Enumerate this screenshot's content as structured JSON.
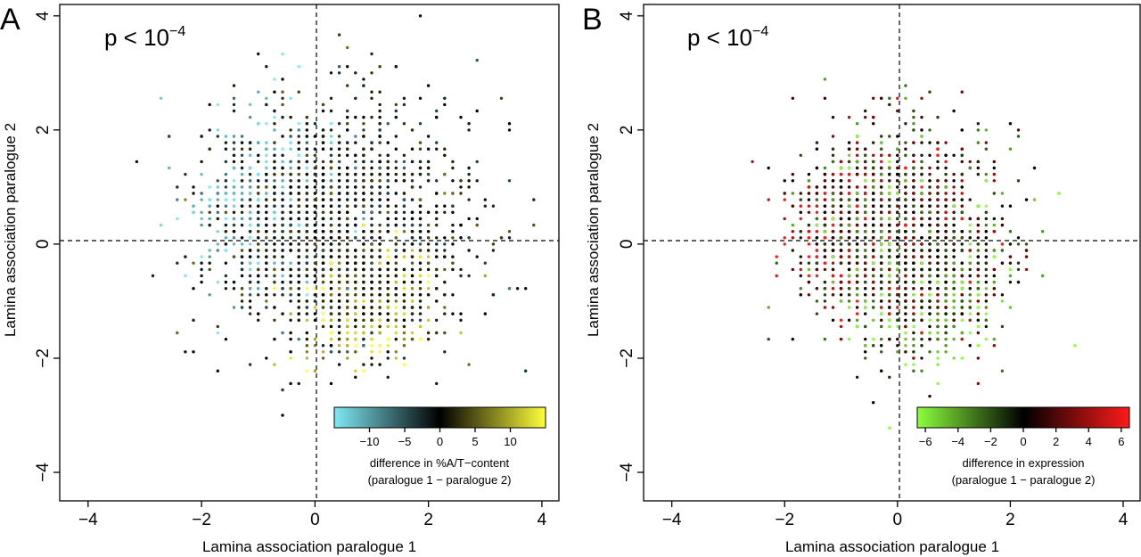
{
  "chart_data": [
    {
      "panel": "A",
      "type": "scatter",
      "pvalue_base": "p < 10",
      "pvalue_exp": "−4",
      "xlabel": "Lamina association paralogue 1",
      "ylabel": "Lamina association paralogue 2",
      "xlim": [
        -4.5,
        4.3
      ],
      "ylim": [
        -4.5,
        4.2
      ],
      "xticks": [
        -4,
        -2,
        0,
        2,
        4
      ],
      "yticks": [
        -4,
        -2,
        0,
        2,
        4
      ],
      "xtick_labels": [
        "−4",
        "−2",
        "0",
        "2",
        "4"
      ],
      "ytick_labels": [
        "−4",
        "−2",
        "0",
        "2",
        "4"
      ],
      "reference_lines": {
        "x": 0,
        "y": 0
      },
      "colorbar": {
        "range": [
          -15,
          15
        ],
        "ticks": [
          -10,
          -5,
          0,
          5,
          10
        ],
        "tick_labels": [
          "−10",
          "−5",
          "0",
          "5",
          "10"
        ],
        "colors": [
          "#7fe9f5",
          "#000000",
          "#ffff3a"
        ],
        "label_line1": "difference in %A/T−content",
        "label_line2": "(paralogue 1 − paralogue 2)"
      },
      "clusters": [
        {
          "name": "cyan (negative)",
          "center": [
            -0.6,
            0.6
          ],
          "spread": [
            0.65,
            0.75
          ],
          "color_value": -12
        },
        {
          "name": "yellow (positive)",
          "center": [
            0.9,
            -0.9
          ],
          "spread": [
            0.55,
            0.5
          ],
          "color_value": 12
        },
        {
          "name": "dark (mixed)",
          "center": [
            0.6,
            0.3
          ],
          "spread": [
            1.1,
            1.1
          ],
          "color_value": 0
        }
      ]
    },
    {
      "panel": "B",
      "type": "scatter",
      "pvalue_base": "p < 10",
      "pvalue_exp": "−4",
      "xlabel": "Lamina association paralogue 1",
      "ylabel": "Lamina association paralogue 2",
      "xlim": [
        -4.5,
        4.3
      ],
      "ylim": [
        -4.5,
        4.2
      ],
      "xticks": [
        -4,
        -2,
        0,
        2,
        4
      ],
      "yticks": [
        -4,
        -2,
        0,
        2,
        4
      ],
      "xtick_labels": [
        "−4",
        "−2",
        "0",
        "2",
        "4"
      ],
      "ytick_labels": [
        "−4",
        "−2",
        "0",
        "2",
        "4"
      ],
      "reference_lines": {
        "x": 0,
        "y": 0
      },
      "colorbar": {
        "range": [
          -6.5,
          6.5
        ],
        "ticks": [
          -6,
          -4,
          -2,
          0,
          2,
          4,
          6
        ],
        "tick_labels": [
          "−6",
          "−4",
          "−2",
          "0",
          "2",
          "4",
          "6"
        ],
        "colors": [
          "#8cff3c",
          "#000000",
          "#ff1a1a"
        ],
        "label_line1": "difference in expression",
        "label_line2": "(paralogue 1 − paralogue 2)"
      },
      "clusters": [
        {
          "name": "red (positive)",
          "center": [
            -0.6,
            0.3
          ],
          "spread": [
            0.55,
            0.6
          ],
          "color_value": 5
        },
        {
          "name": "green (negative)",
          "center": [
            0.5,
            -0.7
          ],
          "spread": [
            0.6,
            0.55
          ],
          "color_value": -5
        },
        {
          "name": "dark (mixed)",
          "center": [
            0.1,
            0.2
          ],
          "spread": [
            0.85,
            0.85
          ],
          "color_value": 0
        }
      ]
    }
  ]
}
